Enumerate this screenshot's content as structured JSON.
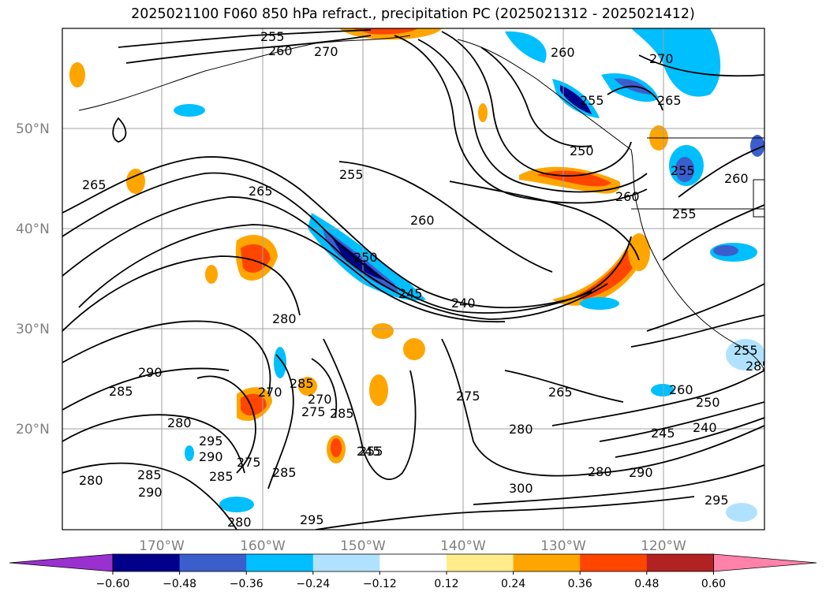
{
  "title": "2025021100 F060 850 hPa refract., precipitation PC (2025021312 - 2025021412)",
  "lat_labels": [
    "50°N",
    "40°N",
    "30°N",
    "20°N"
  ],
  "lon_labels": [
    "170°W",
    "160°W",
    "150°W",
    "140°W",
    "130°W",
    "120°W"
  ],
  "colorbar": {
    "colors": [
      "#9b30d0",
      "#00008b",
      "#3a5fcd",
      "#00bfff",
      "#b0e2ff",
      "#ffffff",
      "#ffec8b",
      "#ffa500",
      "#ff4500",
      "#b22222",
      "#ff82ab"
    ],
    "tick_labels": [
      "−0.60",
      "−0.48",
      "−0.36",
      "−0.24",
      "−0.12",
      "0.12",
      "0.24",
      "0.36",
      "0.48",
      "0.60"
    ]
  },
  "contour_labels": [
    "255",
    "260",
    "260",
    "270",
    "255",
    "265",
    "250",
    "255",
    "265",
    "255",
    "260",
    "265",
    "255",
    "260",
    "250",
    "245",
    "240",
    "275",
    "280",
    "290",
    "285",
    "270",
    "285",
    "270",
    "280",
    "265",
    "260",
    "250",
    "245",
    "240",
    "280",
    "295",
    "290",
    "285",
    "275",
    "285",
    "280",
    "285",
    "290",
    "280",
    "285",
    "300",
    "290",
    "295",
    "295",
    "280",
    "255",
    "255",
    "260",
    "270",
    "245",
    "275",
    "285"
  ]
}
